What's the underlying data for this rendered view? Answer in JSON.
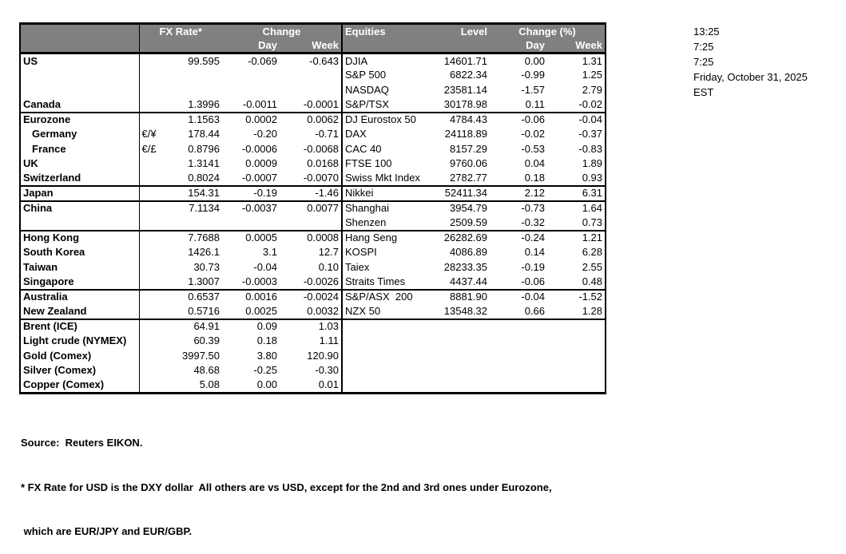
{
  "colors": {
    "header_bg": "#808080",
    "header_text": "#ffffff",
    "border": "#000000",
    "body_text": "#000000",
    "background": "#ffffff"
  },
  "table_header": {
    "fx_rate": "FX Rate*",
    "fx_change": "Change",
    "fx_day": "Day",
    "fx_week": "Week",
    "equities": "Equities",
    "level": "Level",
    "eq_change": "Change (%)",
    "eq_day": "Day",
    "eq_week": "Week"
  },
  "rows": [
    {
      "country": "US",
      "pair": "",
      "rate": "99.595",
      "day": "-0.069",
      "week": "-0.643",
      "equity": "DJIA",
      "level": "14601.71",
      "eday": "0.00",
      "eweek": "1.31",
      "sec": false,
      "ind": false
    },
    {
      "country": "",
      "pair": "",
      "rate": "",
      "day": "",
      "week": "",
      "equity": "S&P 500",
      "level": "6822.34",
      "eday": "-0.99",
      "eweek": "1.25",
      "sec": false,
      "ind": false
    },
    {
      "country": "",
      "pair": "",
      "rate": "",
      "day": "",
      "week": "",
      "equity": "NASDAQ",
      "level": "23581.14",
      "eday": "-1.57",
      "eweek": "2.79",
      "sec": false,
      "ind": false
    },
    {
      "country": "Canada",
      "pair": "",
      "rate": "1.3996",
      "day": "-0.0011",
      "week": "-0.0001",
      "equity": "S&P/TSX",
      "level": "30178.98",
      "eday": "0.11",
      "eweek": "-0.02",
      "sec": false,
      "ind": false
    },
    {
      "country": "Eurozone",
      "pair": "",
      "rate": "1.1563",
      "day": "0.0002",
      "week": "0.0062",
      "equity": "DJ Eurostox 50",
      "level": "4784.43",
      "eday": "-0.06",
      "eweek": "-0.04",
      "sec": true,
      "ind": false
    },
    {
      "country": "Germany",
      "pair": "€/¥",
      "rate": "178.44",
      "day": "-0.20",
      "week": "-0.71",
      "equity": "DAX",
      "level": "24118.89",
      "eday": "-0.02",
      "eweek": "-0.37",
      "sec": false,
      "ind": true
    },
    {
      "country": "France",
      "pair": "€/£",
      "rate": "0.8796",
      "day": "-0.0006",
      "week": "-0.0068",
      "equity": "CAC 40",
      "level": "8157.29",
      "eday": "-0.53",
      "eweek": "-0.83",
      "sec": false,
      "ind": true
    },
    {
      "country": "UK",
      "pair": "",
      "rate": "1.3141",
      "day": "0.0009",
      "week": "0.0168",
      "equity": "FTSE 100",
      "level": "9760.06",
      "eday": "0.04",
      "eweek": "1.89",
      "sec": false,
      "ind": false
    },
    {
      "country": "Switzerland",
      "pair": "",
      "rate": "0.8024",
      "day": "-0.0007",
      "week": "-0.0070",
      "equity": "Swiss Mkt Index",
      "level": "2782.77",
      "eday": "0.18",
      "eweek": "0.93",
      "sec": false,
      "ind": false
    },
    {
      "country": "Japan",
      "pair": "",
      "rate": "154.31",
      "day": "-0.19",
      "week": "-1.46",
      "equity": "Nikkei",
      "level": "52411.34",
      "eday": "2.12",
      "eweek": "6.31",
      "sec": true,
      "ind": false
    },
    {
      "country": "China",
      "pair": "",
      "rate": "7.1134",
      "day": "-0.0037",
      "week": "0.0077",
      "equity": "Shanghai",
      "level": "3954.79",
      "eday": "-0.73",
      "eweek": "1.64",
      "sec": true,
      "ind": false
    },
    {
      "country": "",
      "pair": "",
      "rate": "",
      "day": "",
      "week": "",
      "equity": "Shenzen",
      "level": "2509.59",
      "eday": "-0.32",
      "eweek": "0.73",
      "sec": false,
      "ind": false
    },
    {
      "country": "Hong Kong",
      "pair": "",
      "rate": "7.7688",
      "day": "0.0005",
      "week": "0.0008",
      "equity": "Hang Seng",
      "level": "26282.69",
      "eday": "-0.24",
      "eweek": "1.21",
      "sec": true,
      "ind": false
    },
    {
      "country": "South Korea",
      "pair": "",
      "rate": "1426.1",
      "day": "3.1",
      "week": "12.7",
      "equity": "KOSPI",
      "level": "4086.89",
      "eday": "0.14",
      "eweek": "6.28",
      "sec": false,
      "ind": false
    },
    {
      "country": "Taiwan",
      "pair": "",
      "rate": "30.73",
      "day": "-0.04",
      "week": "0.10",
      "equity": "Taiex",
      "level": "28233.35",
      "eday": "-0.19",
      "eweek": "2.55",
      "sec": false,
      "ind": false
    },
    {
      "country": "Singapore",
      "pair": "",
      "rate": "1.3007",
      "day": "-0.0003",
      "week": "-0.0026",
      "equity": "Straits Times",
      "level": "4437.44",
      "eday": "-0.06",
      "eweek": "0.48",
      "sec": false,
      "ind": false
    },
    {
      "country": "Australia",
      "pair": "",
      "rate": "0.6537",
      "day": "0.0016",
      "week": "-0.0024",
      "equity": "S&P/ASX  200",
      "level": "8881.90",
      "eday": "-0.04",
      "eweek": "-1.52",
      "sec": true,
      "ind": false
    },
    {
      "country": "New Zealand",
      "pair": "",
      "rate": "0.5716",
      "day": "0.0025",
      "week": "0.0032",
      "equity": "NZX 50",
      "level": "13548.32",
      "eday": "0.66",
      "eweek": "1.28",
      "sec": false,
      "ind": false
    },
    {
      "country": "Brent (ICE)",
      "pair": "",
      "rate": "64.91",
      "day": "0.09",
      "week": "1.03",
      "equity": "",
      "level": "",
      "eday": "",
      "eweek": "",
      "sec": true,
      "ind": false
    },
    {
      "country": "Light crude (NYMEX)",
      "pair": "",
      "rate": "60.39",
      "day": "0.18",
      "week": "1.11",
      "equity": "",
      "level": "",
      "eday": "",
      "eweek": "",
      "sec": false,
      "ind": false
    },
    {
      "country": "Gold (Comex)",
      "pair": "",
      "rate": "3997.50",
      "day": "3.80",
      "week": "120.90",
      "equity": "",
      "level": "",
      "eday": "",
      "eweek": "",
      "sec": false,
      "ind": false
    },
    {
      "country": "Silver (Comex)",
      "pair": "",
      "rate": "48.68",
      "day": "-0.25",
      "week": "-0.30",
      "equity": "",
      "level": "",
      "eday": "",
      "eweek": "",
      "sec": false,
      "ind": false
    },
    {
      "country": "Copper (Comex)",
      "pair": "",
      "rate": "5.08",
      "day": "0.00",
      "week": "0.01",
      "equity": "",
      "level": "",
      "eday": "",
      "eweek": "",
      "sec": false,
      "ind": false
    }
  ],
  "side_panel": {
    "lines": [
      "13:25",
      "7:25",
      "7:25",
      "Friday, October 31, 2025",
      "EST"
    ]
  },
  "footer": {
    "source": "Source:  Reuters EIKON.",
    "note1": "* FX Rate for USD is the DXY dollar  All others are vs USD, except for the 2nd and 3rd ones under Eurozone,",
    "note2": " which are EUR/JPY and EUR/GBP."
  }
}
